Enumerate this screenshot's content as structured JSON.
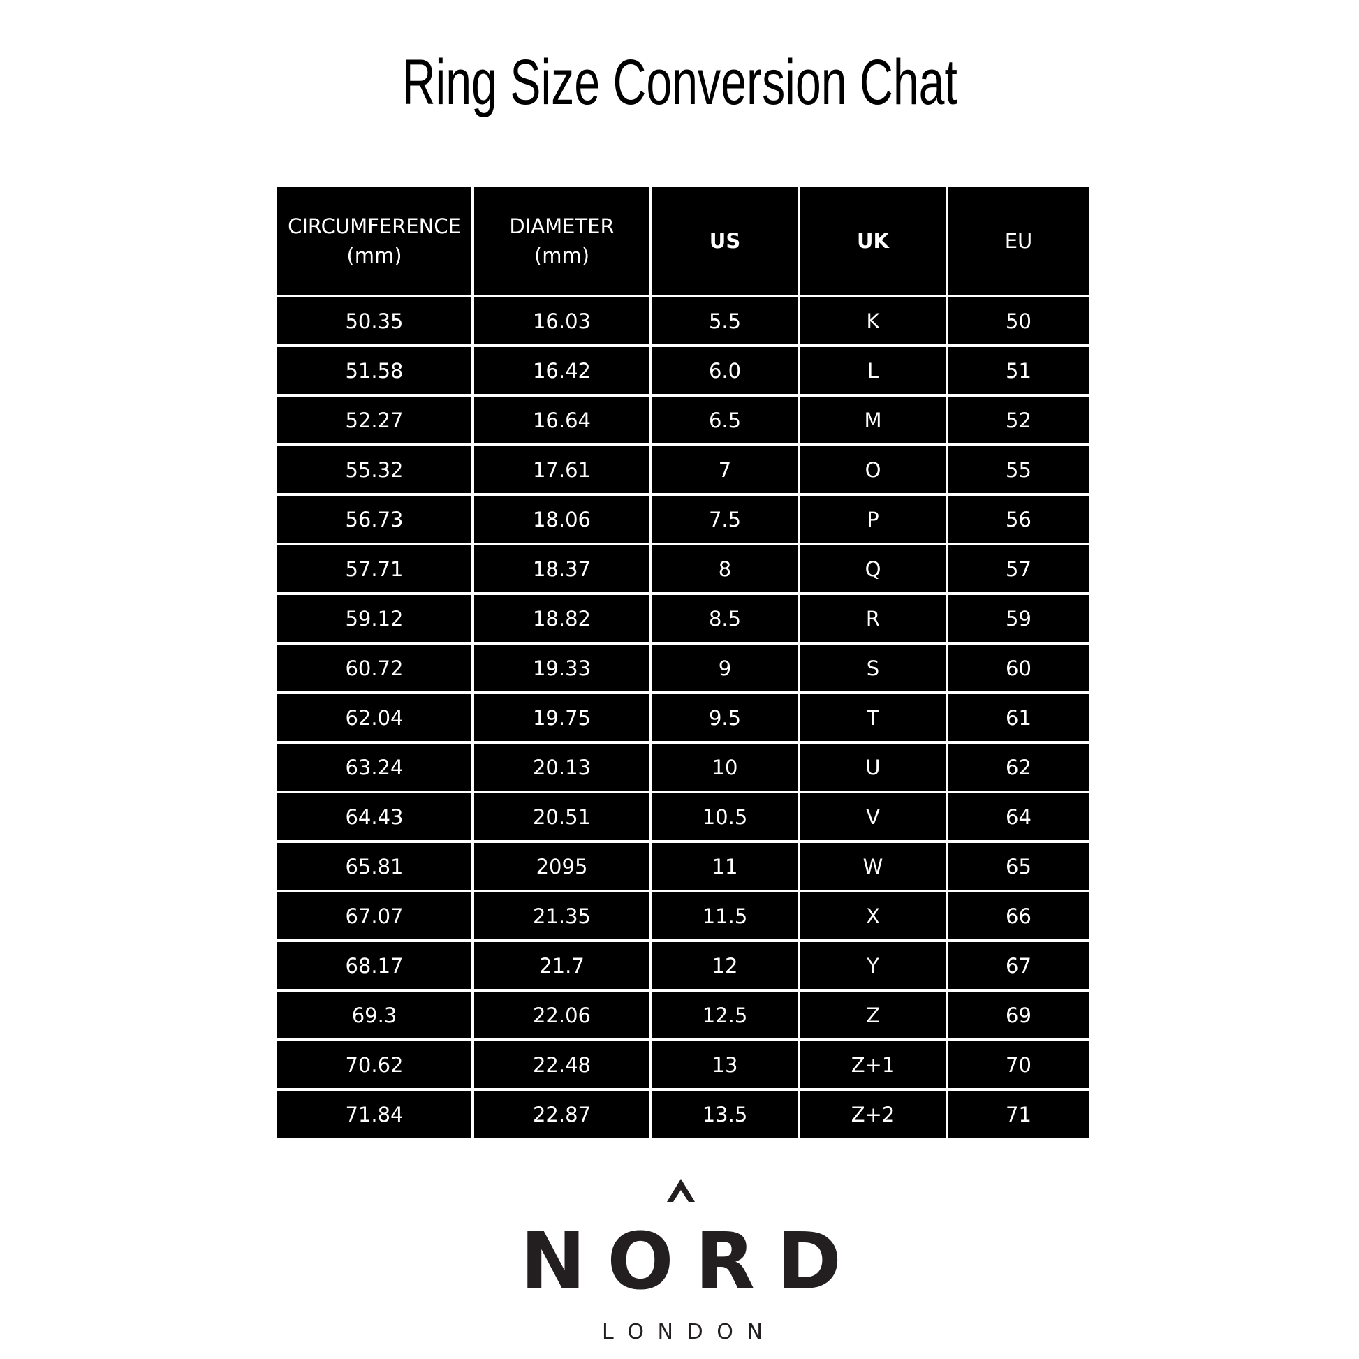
{
  "title": "Ring Size Conversion Chat",
  "table": {
    "headers": [
      {
        "line1": "CIRCUMFERENCE",
        "line2": "(mm)",
        "bold": false
      },
      {
        "line1": "DIAMETER",
        "line2": "(mm)",
        "bold": false
      },
      {
        "line1": "US",
        "line2": "",
        "bold": true
      },
      {
        "line1": "UK",
        "line2": "",
        "bold": true
      },
      {
        "line1": "EU",
        "line2": "",
        "bold": false
      }
    ],
    "rows": [
      [
        "50.35",
        "16.03",
        "5.5",
        "K",
        "50"
      ],
      [
        "51.58",
        "16.42",
        "6.0",
        "L",
        "51"
      ],
      [
        "52.27",
        "16.64",
        "6.5",
        "M",
        "52"
      ],
      [
        "55.32",
        "17.61",
        "7",
        "O",
        "55"
      ],
      [
        "56.73",
        "18.06",
        "7.5",
        "P",
        "56"
      ],
      [
        "57.71",
        "18.37",
        "8",
        "Q",
        "57"
      ],
      [
        "59.12",
        "18.82",
        "8.5",
        "R",
        "59"
      ],
      [
        "60.72",
        "19.33",
        "9",
        "S",
        "60"
      ],
      [
        "62.04",
        "19.75",
        "9.5",
        "T",
        "61"
      ],
      [
        "63.24",
        "20.13",
        "10",
        "U",
        "62"
      ],
      [
        "64.43",
        "20.51",
        "10.5",
        "V",
        "64"
      ],
      [
        "65.81",
        "2095",
        "11",
        "W",
        "65"
      ],
      [
        "67.07",
        "21.35",
        "11.5",
        "X",
        "66"
      ],
      [
        "68.17",
        "21.7",
        "12",
        "Y",
        "67"
      ],
      [
        "69.3",
        "22.06",
        "12.5",
        "Z",
        "69"
      ],
      [
        "70.62",
        "22.48",
        "13",
        "Z+1",
        "70"
      ],
      [
        "71.84",
        "22.87",
        "13.5",
        "Z+2",
        "71"
      ]
    ]
  },
  "logo": {
    "brand": "NORD",
    "sub": "LONDON",
    "icon": "caret-up-icon",
    "color": "#231f20"
  }
}
